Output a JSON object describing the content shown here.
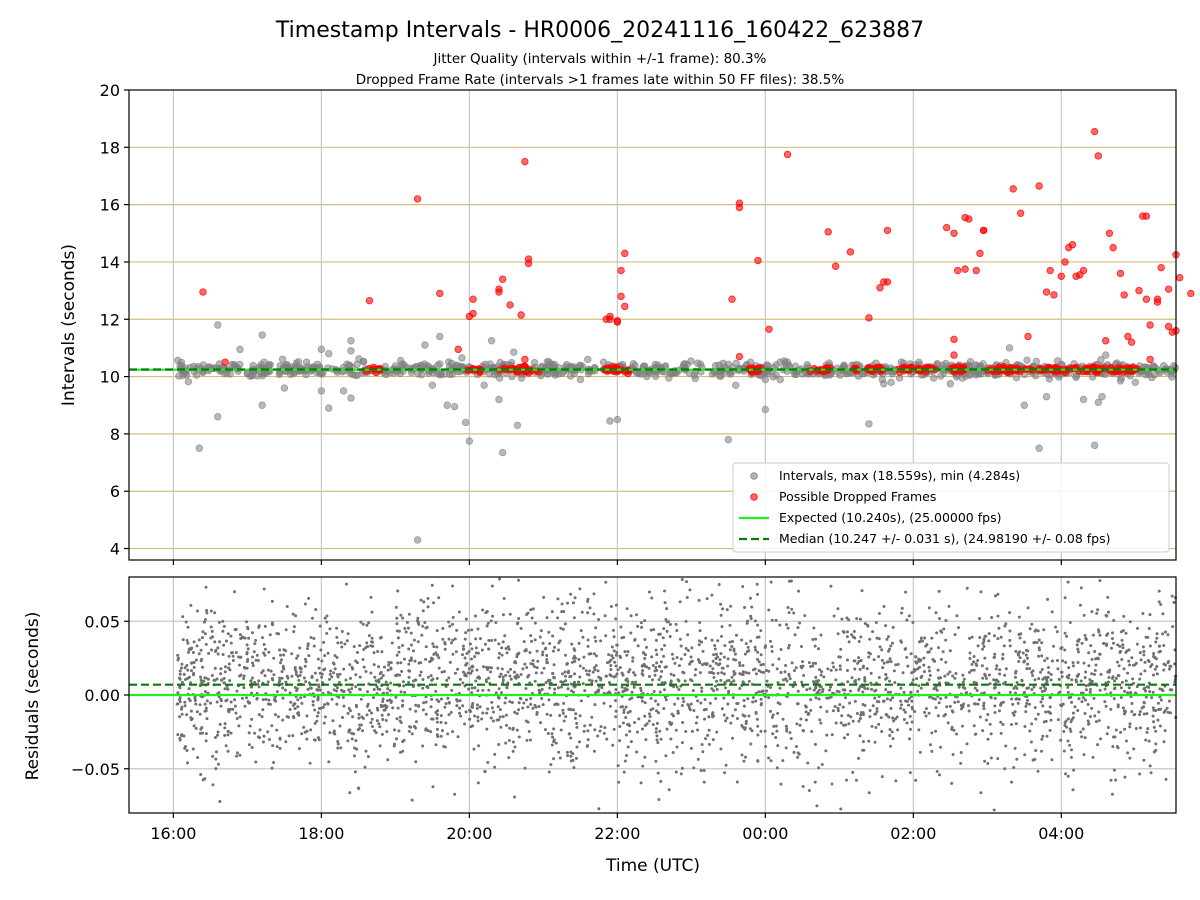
{
  "chart_data": [
    {
      "type": "scatter",
      "title": "Timestamp Intervals - HR0006_20241116_160422_623887",
      "subtitle_lines": [
        "Jitter Quality (intervals within +/-1 frame): 80.3%",
        "Dropped Frame Rate (intervals >1 frames late within 50 FF files): 38.5%"
      ],
      "ylabel": "Intervals (seconds)",
      "xlim": [
        15.4,
        29.55
      ],
      "ylim": [
        3.6,
        20
      ],
      "x_unit": "hours since 2024-11-16 00:00 UTC",
      "yticks": [
        4,
        6,
        8,
        10,
        12,
        14,
        16,
        18,
        20
      ],
      "grid": true,
      "yband_lines": [
        4,
        6,
        8,
        10,
        12,
        14,
        16,
        18
      ],
      "legend_position": "lower-right",
      "series": [
        {
          "name": "Intervals, max (18.559s), min (4.284s)",
          "color": "#808080",
          "note": "bulk of points near 10.24 s across 16:05-05:35; outliers listed",
          "band_y": 10.24,
          "outliers": [
            [
              16.35,
              7.5
            ],
            [
              16.6,
              11.8
            ],
            [
              16.6,
              8.6
            ],
            [
              16.9,
              10.95
            ],
            [
              17.2,
              11.45
            ],
            [
              17.2,
              9.0
            ],
            [
              17.5,
              9.6
            ],
            [
              17.8,
              10.5
            ],
            [
              18.0,
              9.5
            ],
            [
              18.0,
              10.95
            ],
            [
              18.1,
              10.8
            ],
            [
              18.1,
              8.9
            ],
            [
              18.3,
              9.5
            ],
            [
              18.4,
              10.9
            ],
            [
              18.4,
              11.25
            ],
            [
              18.4,
              9.25
            ],
            [
              19.3,
              4.3
            ],
            [
              19.4,
              11.1
            ],
            [
              19.5,
              9.7
            ],
            [
              19.6,
              11.4
            ],
            [
              19.7,
              9.0
            ],
            [
              19.8,
              8.95
            ],
            [
              19.9,
              10.65
            ],
            [
              19.95,
              8.4
            ],
            [
              20.0,
              7.75
            ],
            [
              20.2,
              9.7
            ],
            [
              20.3,
              11.25
            ],
            [
              20.4,
              9.2
            ],
            [
              20.45,
              7.35
            ],
            [
              20.6,
              10.85
            ],
            [
              20.65,
              8.3
            ],
            [
              20.7,
              10.1
            ],
            [
              21.5,
              9.9
            ],
            [
              21.6,
              10.6
            ],
            [
              21.9,
              8.45
            ],
            [
              22.0,
              8.5
            ],
            [
              23.5,
              7.8
            ],
            [
              23.6,
              9.7
            ],
            [
              23.8,
              10.5
            ],
            [
              24.0,
              8.85
            ],
            [
              24.2,
              10.5
            ],
            [
              25.2,
              10.4
            ],
            [
              25.4,
              8.35
            ],
            [
              25.6,
              9.75
            ],
            [
              25.7,
              9.8
            ],
            [
              26.5,
              9.75
            ],
            [
              27.3,
              11.0
            ],
            [
              27.5,
              9.0
            ],
            [
              27.7,
              7.5
            ],
            [
              27.8,
              9.3
            ],
            [
              27.95,
              10.55
            ],
            [
              28.3,
              9.2
            ],
            [
              28.45,
              7.6
            ],
            [
              28.5,
              9.1
            ],
            [
              28.55,
              9.3
            ],
            [
              28.6,
              10.75
            ],
            [
              28.8,
              9.85
            ],
            [
              29.0,
              9.8
            ]
          ]
        },
        {
          "name": "Possible Dropped Frames",
          "color": "#ff0000",
          "note": "dense runs near 10.24 s in segments listed; outliers listed",
          "band_y": 10.24,
          "band_segments": [
            [
              18.6,
              18.8
            ],
            [
              19.95,
              20.15
            ],
            [
              20.4,
              20.95
            ],
            [
              21.8,
              22.2
            ],
            [
              23.75,
              23.95
            ],
            [
              24.6,
              24.9
            ],
            [
              25.2,
              25.6
            ],
            [
              25.8,
              26.3
            ],
            [
              26.5,
              26.8
            ],
            [
              27.0,
              29.05
            ]
          ],
          "outliers": [
            [
              16.4,
              12.95
            ],
            [
              16.7,
              10.5
            ],
            [
              18.65,
              12.65
            ],
            [
              19.3,
              16.2
            ],
            [
              19.6,
              12.9
            ],
            [
              19.85,
              10.95
            ],
            [
              20.0,
              12.1
            ],
            [
              20.05,
              12.7
            ],
            [
              20.05,
              12.2
            ],
            [
              20.4,
              12.95
            ],
            [
              20.4,
              13.05
            ],
            [
              20.45,
              13.4
            ],
            [
              20.55,
              12.5
            ],
            [
              20.7,
              12.15
            ],
            [
              20.75,
              17.5
            ],
            [
              20.75,
              10.6
            ],
            [
              20.8,
              14.1
            ],
            [
              20.8,
              13.95
            ],
            [
              21.85,
              12.0
            ],
            [
              21.9,
              12.1
            ],
            [
              21.9,
              12.0
            ],
            [
              22.0,
              11.9
            ],
            [
              22.0,
              11.95
            ],
            [
              22.05,
              12.8
            ],
            [
              22.05,
              13.7
            ],
            [
              22.1,
              14.3
            ],
            [
              22.1,
              12.45
            ],
            [
              23.55,
              12.7
            ],
            [
              23.65,
              16.05
            ],
            [
              23.65,
              15.9
            ],
            [
              23.65,
              10.7
            ],
            [
              23.9,
              14.05
            ],
            [
              24.05,
              11.65
            ],
            [
              24.3,
              17.75
            ],
            [
              24.85,
              15.05
            ],
            [
              24.95,
              13.85
            ],
            [
              25.15,
              14.35
            ],
            [
              25.4,
              12.05
            ],
            [
              25.55,
              13.1
            ],
            [
              25.6,
              13.3
            ],
            [
              25.65,
              15.1
            ],
            [
              25.65,
              13.3
            ],
            [
              26.45,
              15.2
            ],
            [
              26.55,
              15.0
            ],
            [
              26.55,
              11.3
            ],
            [
              26.55,
              10.75
            ],
            [
              26.6,
              13.7
            ],
            [
              26.7,
              15.55
            ],
            [
              26.7,
              13.75
            ],
            [
              26.75,
              15.5
            ],
            [
              26.85,
              13.7
            ],
            [
              26.9,
              14.3
            ],
            [
              26.95,
              15.1
            ],
            [
              26.95,
              15.1
            ],
            [
              27.35,
              16.55
            ],
            [
              27.45,
              15.7
            ],
            [
              27.55,
              11.4
            ],
            [
              27.7,
              16.65
            ],
            [
              27.8,
              12.95
            ],
            [
              27.85,
              13.7
            ],
            [
              27.9,
              12.85
            ],
            [
              28.0,
              13.5
            ],
            [
              28.05,
              14.0
            ],
            [
              28.1,
              14.5
            ],
            [
              28.15,
              14.6
            ],
            [
              28.2,
              13.5
            ],
            [
              28.25,
              13.55
            ],
            [
              28.3,
              13.7
            ],
            [
              28.45,
              18.55
            ],
            [
              28.5,
              17.7
            ],
            [
              28.6,
              11.25
            ],
            [
              28.65,
              15.0
            ],
            [
              28.7,
              14.5
            ],
            [
              28.8,
              13.6
            ],
            [
              28.85,
              12.85
            ],
            [
              28.9,
              11.4
            ],
            [
              28.95,
              11.2
            ],
            [
              29.15,
              15.6
            ],
            [
              29.2,
              11.8
            ],
            [
              29.3,
              12.6
            ],
            [
              29.45,
              11.75
            ],
            [
              29.5,
              11.55
            ],
            [
              29.55,
              11.6
            ],
            [
              29.05,
              13.0
            ],
            [
              29.1,
              15.6
            ],
            [
              29.15,
              12.7
            ],
            [
              29.3,
              12.7
            ],
            [
              29.35,
              13.8
            ],
            [
              29.45,
              13.05
            ],
            [
              29.55,
              14.25
            ],
            [
              29.6,
              13.45
            ],
            [
              29.75,
              12.9
            ],
            [
              29.95,
              13.7
            ],
            [
              29.2,
              10.6
            ]
          ]
        },
        {
          "name": "Expected (10.240s), (25.00000 fps)",
          "color": "#22ee22",
          "style": "solid",
          "y": 10.24
        },
        {
          "name": "Median (10.247 +/- 0.031 s), (24.98190 +/- 0.08 fps)",
          "color": "#0a7a0a",
          "style": "dashed",
          "y": 10.247
        }
      ]
    },
    {
      "type": "scatter",
      "xlabel": "Time (UTC)",
      "ylabel": "Residuals (seconds)",
      "xlim": [
        15.4,
        29.55
      ],
      "ylim": [
        -0.08,
        0.08
      ],
      "yticks": [
        0.05,
        0.0,
        -0.05
      ],
      "ytick_labels": [
        "0.05",
        "0.00",
        "−0.05"
      ],
      "xticks": [
        16,
        18,
        20,
        22,
        24,
        26,
        28
      ],
      "xtick_labels": [
        "16:00",
        "18:00",
        "20:00",
        "22:00",
        "00:00",
        "02:00",
        "04:00"
      ],
      "grid": true,
      "series": [
        {
          "name": "Residuals",
          "color": "#707070",
          "note": "dense cloud of points spread across -0.08..0.08 s from 16:05 to 05:35, concentrated near 0",
          "x_range": [
            16.05,
            29.55
          ],
          "y_range": [
            -0.08,
            0.08
          ]
        },
        {
          "name": "Expected",
          "color": "#22ee22",
          "style": "solid",
          "y": 0.0
        },
        {
          "name": "Median",
          "color": "#0a7a0a",
          "style": "dashed",
          "y": 0.007
        }
      ]
    }
  ]
}
